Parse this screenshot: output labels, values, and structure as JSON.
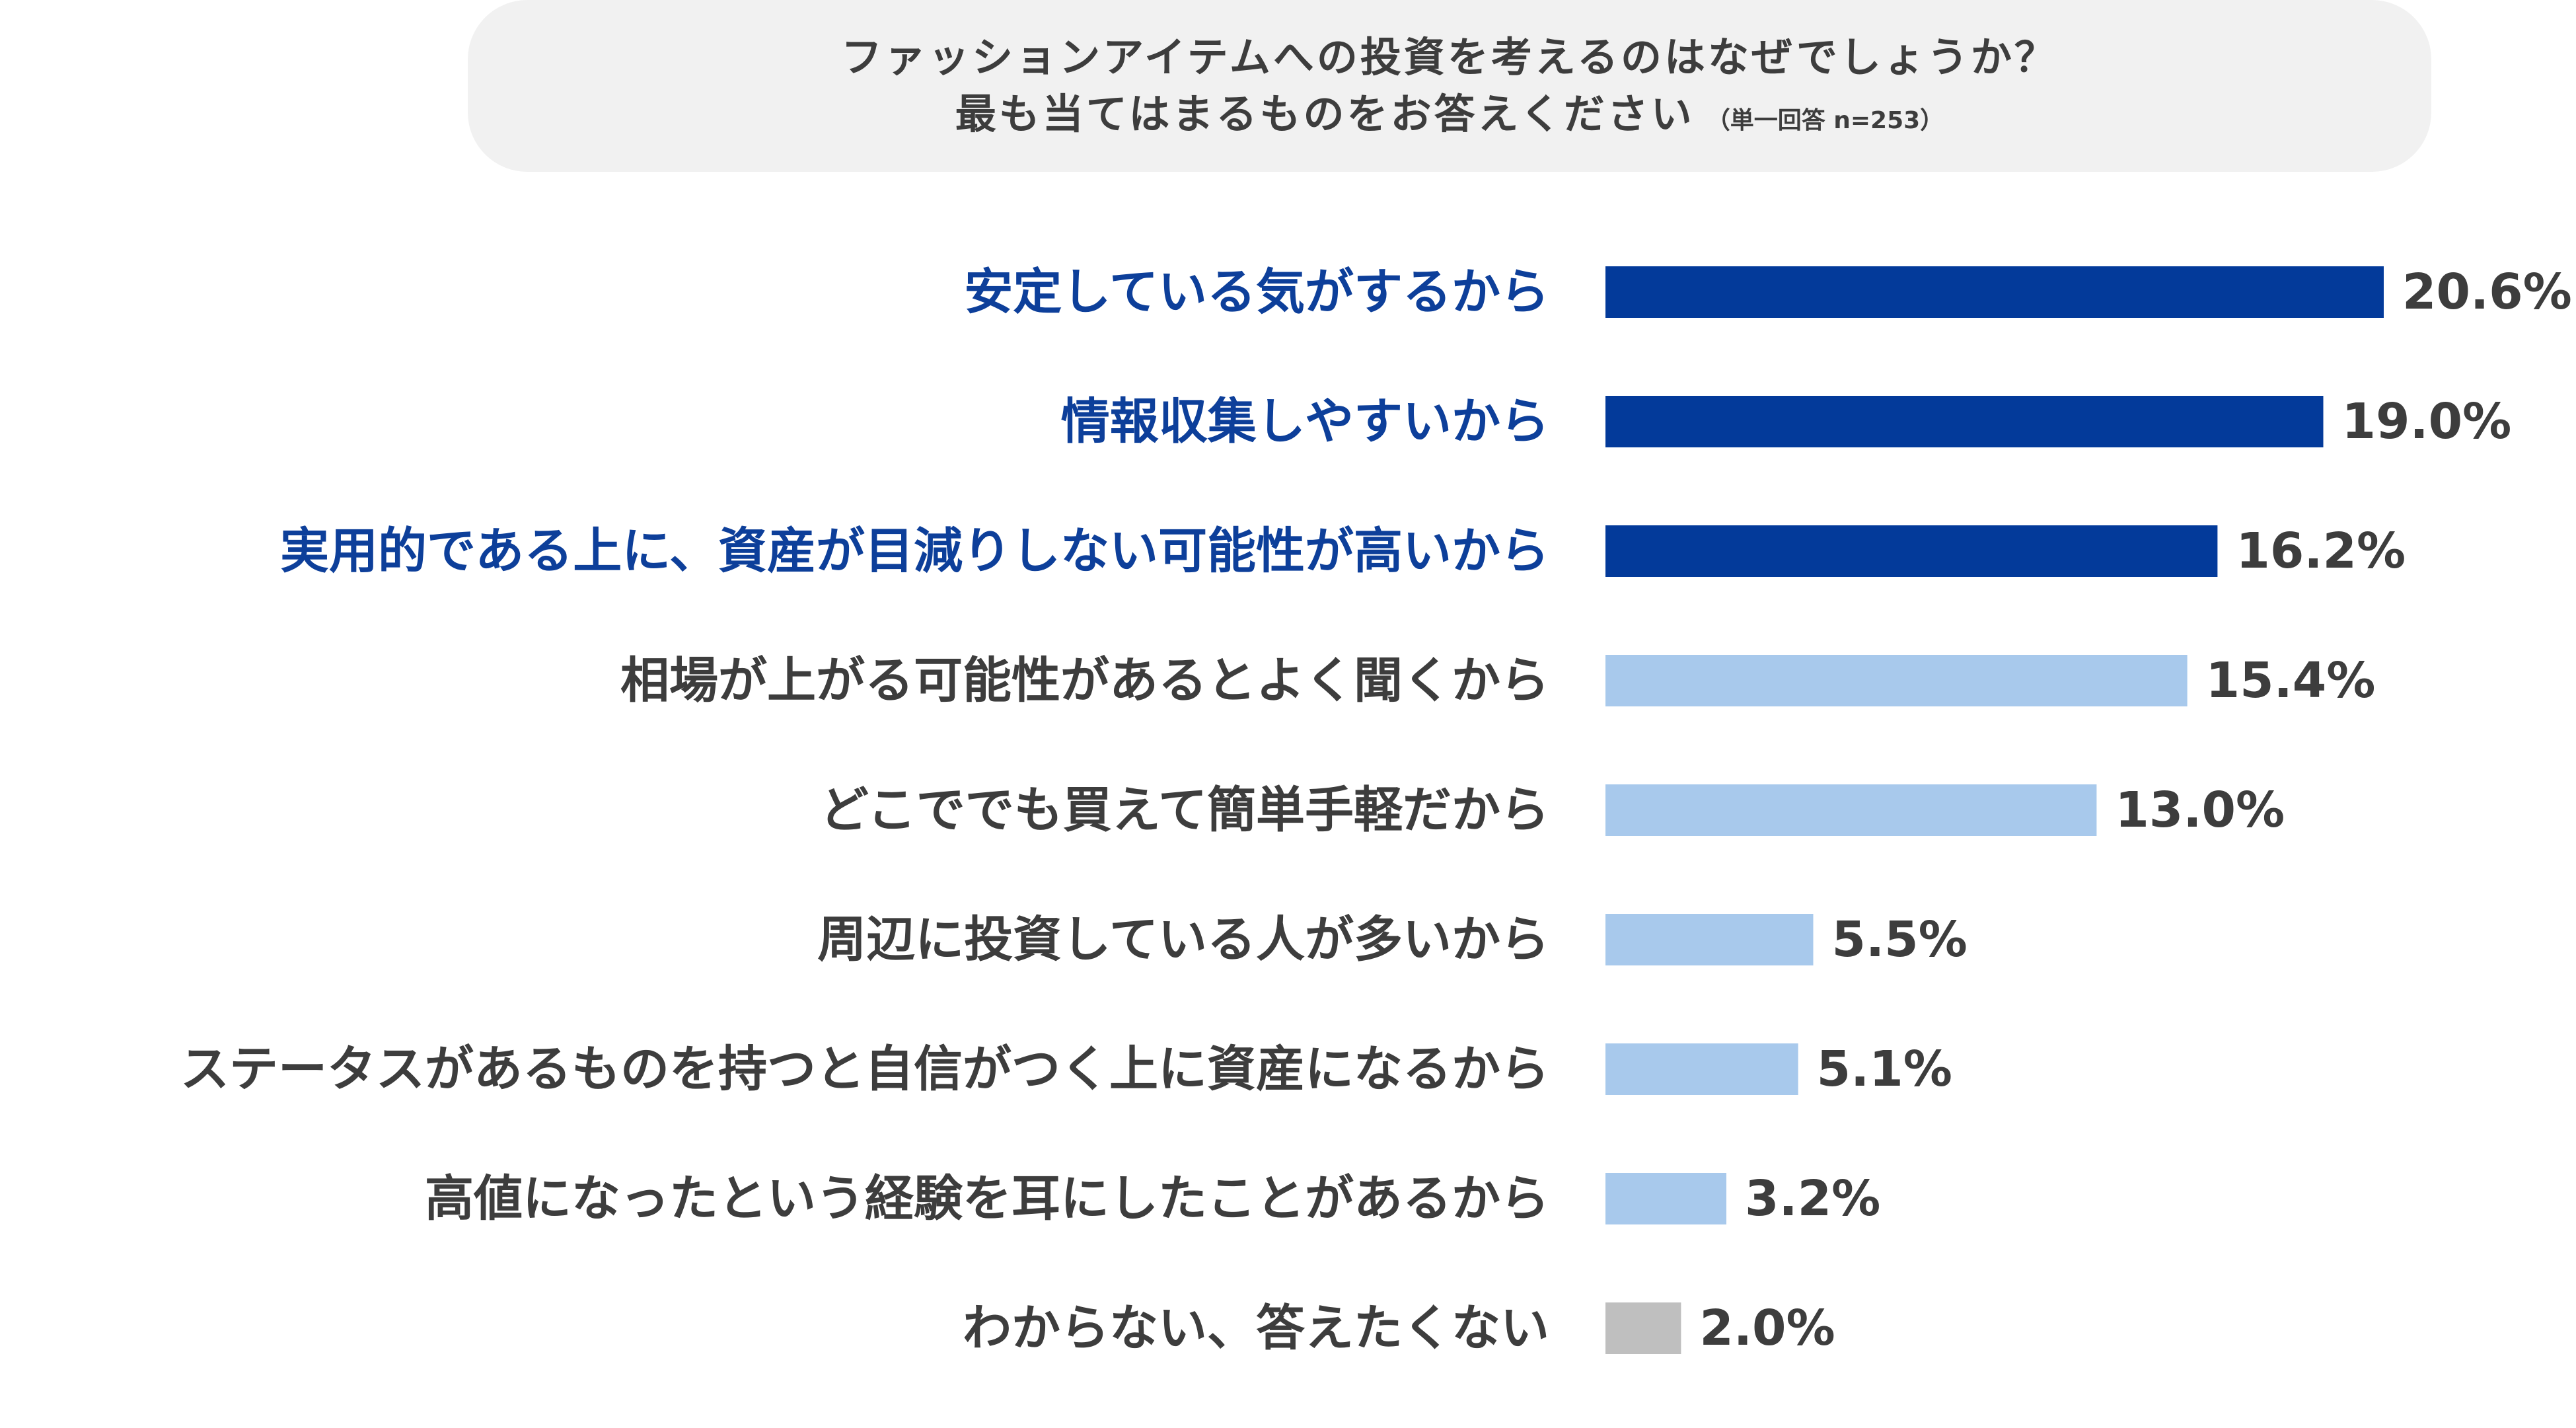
{
  "title": {
    "line1": "ファッションアイテムへの投資を考えるのはなぜでしょうか？",
    "line2": "最も当てはまるものをお答えください",
    "note": "（単一回答 n=253）"
  },
  "colors": {
    "top": "#033a9a",
    "other": "#a8c9ec",
    "unknown": "#bfbfbf",
    "top_text": "#0d3f9a",
    "text": "#3d3d3d"
  },
  "chart_data": {
    "type": "bar",
    "orientation": "horizontal",
    "title": "ファッションアイテムへの投資を考えるのはなぜでしょうか？ 最も当てはまるものをお答えください",
    "xlim": [
      0,
      20.6
    ],
    "unit": "%",
    "categories": [
      "安定している気がするから",
      "情報収集しやすいから",
      "実用的である上に、資産が目減りしない可能性が高いから",
      "相場が上がる可能性があるとよく聞くから",
      "どこででも買えて簡単手軽だから",
      "周辺に投資している人が多いから",
      "ステータスがあるものを持つと自信がつく上に資産になるから",
      "高値になったという経験を耳にしたことがあるから",
      "わからない、答えたくない"
    ],
    "values": [
      20.6,
      19.0,
      16.2,
      15.4,
      13.0,
      5.5,
      5.1,
      3.2,
      2.0
    ],
    "value_labels": [
      "20.6%",
      "19.0%",
      "16.2%",
      "15.4%",
      "13.0%",
      "5.5%",
      "5.1%",
      "3.2%",
      "2.0%"
    ],
    "groups": [
      "top",
      "top",
      "top",
      "other",
      "other",
      "other",
      "other",
      "other",
      "unknown"
    ]
  }
}
